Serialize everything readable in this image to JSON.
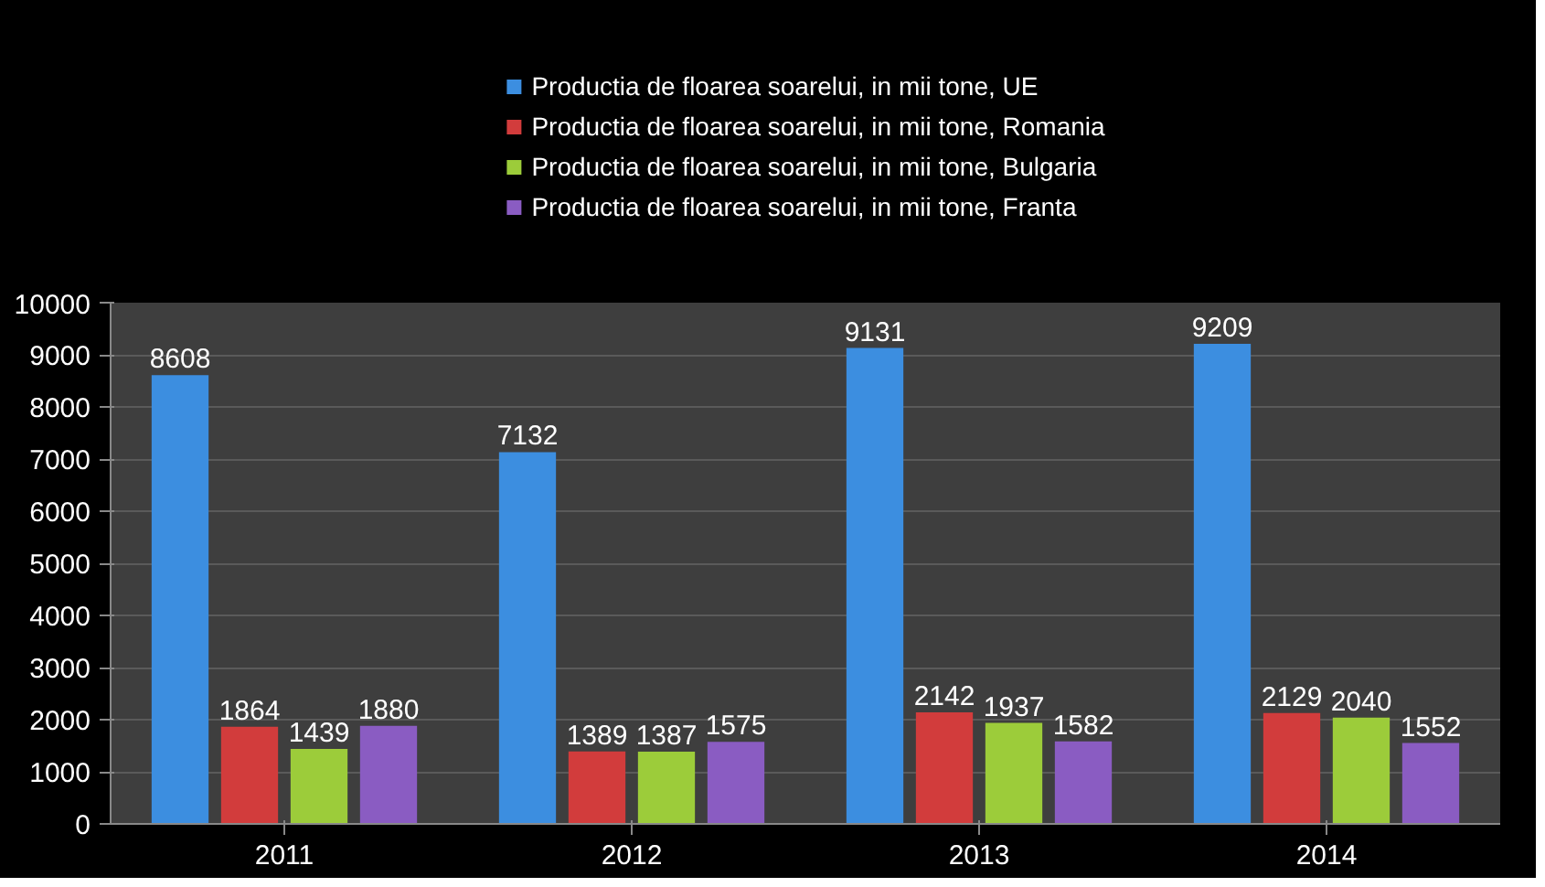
{
  "chart_data": {
    "type": "bar",
    "categories": [
      "2011",
      "2012",
      "2013",
      "2014"
    ],
    "series": [
      {
        "name": "Productia de floarea soarelui, in mii tone, UE",
        "color": "#3c8ee0",
        "values": [
          8608,
          7132,
          9131,
          9209
        ]
      },
      {
        "name": "Productia de floarea soarelui, in mii tone, Romania",
        "color": "#d23c3c",
        "values": [
          1864,
          1389,
          2142,
          2129
        ]
      },
      {
        "name": "Productia de floarea soarelui, in mii tone, Bulgaria",
        "color": "#9ccc3a",
        "values": [
          1439,
          1387,
          1937,
          2040
        ]
      },
      {
        "name": "Productia de floarea soarelui, in mii tone, Franta",
        "color": "#8a5cc2",
        "values": [
          1880,
          1575,
          1582,
          1552
        ]
      }
    ],
    "ylim": [
      0,
      10000
    ],
    "yticks": [
      0,
      1000,
      2000,
      3000,
      4000,
      5000,
      6000,
      7000,
      8000,
      9000,
      10000
    ],
    "grid": "y",
    "legend": "top",
    "data_labels": true
  }
}
